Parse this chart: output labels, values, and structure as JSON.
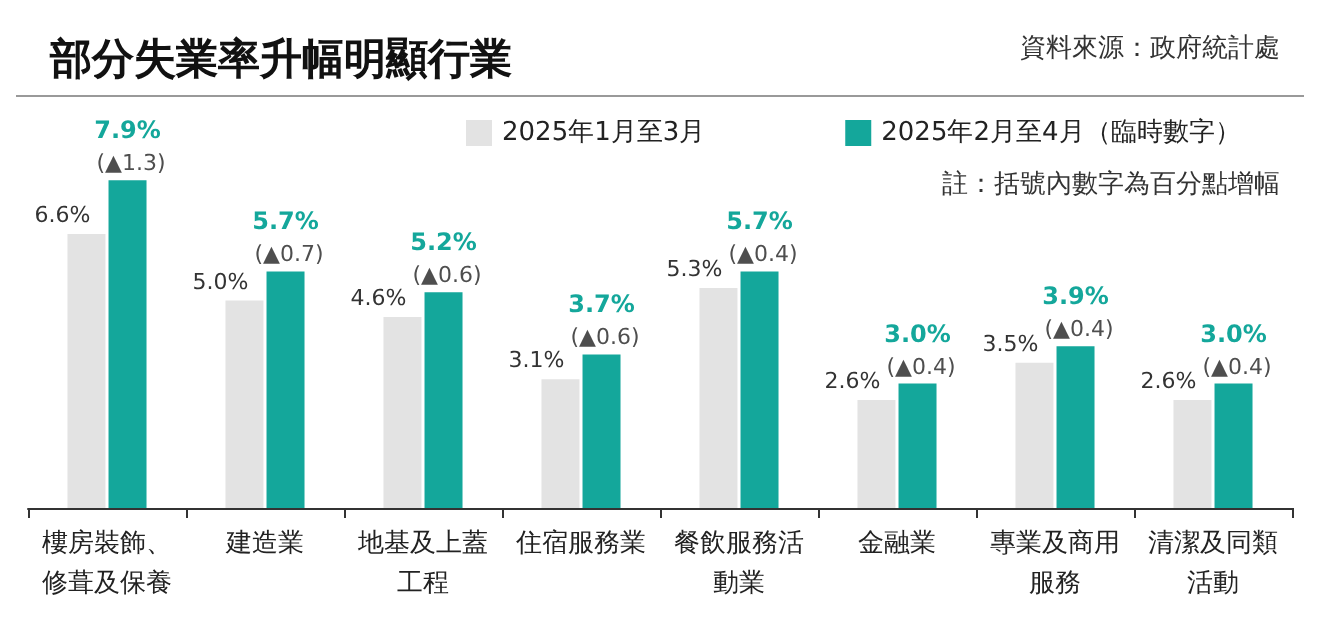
{
  "chart_data": {
    "type": "bar",
    "title": "部分失業率升幅明顯行業",
    "categories": [
      "樓房裝飾、修葺及保養",
      "建造業",
      "地基及上蓋工程",
      "住宿服務業",
      "餐飲服務活動業",
      "金融業",
      "專業及商用服務",
      "清潔及同類活動"
    ],
    "series": [
      {
        "name": "2025年1月至3月",
        "color": "#e3e3e3",
        "values": [
          6.6,
          5.0,
          4.6,
          3.1,
          5.3,
          2.6,
          3.5,
          2.6
        ],
        "value_labels": [
          "6.6%",
          "5.0%",
          "4.6%",
          "3.1%",
          "5.3%",
          "2.6%",
          "3.5%",
          "2.6%"
        ]
      },
      {
        "name": "2025年2月至4月（臨時數字）",
        "color": "#14a79b",
        "values": [
          7.9,
          5.7,
          5.2,
          3.7,
          5.7,
          3.0,
          3.9,
          3.0
        ],
        "value_labels": [
          "7.9%",
          "5.7%",
          "5.2%",
          "3.7%",
          "5.7%",
          "3.0%",
          "3.9%",
          "3.0%"
        ]
      }
    ],
    "annotations": [
      "資料來源：政府統計處",
      "註：括號內數字為百分點增幅",
      {
        "text": "(▲1.3)",
        "x": "樓房裝飾、修葺及保養",
        "y": 7.9
      },
      {
        "text": "(▲0.7)",
        "x": "建造業",
        "y": 5.7
      },
      {
        "text": "(▲0.6)",
        "x": "地基及上蓋工程",
        "y": 5.2
      },
      {
        "text": "(▲0.6)",
        "x": "住宿服務業",
        "y": 3.7
      },
      {
        "text": "(▲0.4)",
        "x": "餐飲服務活動業",
        "y": 5.7
      },
      {
        "text": "(▲0.4)",
        "x": "金融業",
        "y": 3.0
      },
      {
        "text": "(▲0.4)",
        "x": "專業及商用服務",
        "y": 3.9
      },
      {
        "text": "(▲0.4)",
        "x": "清潔及同類活動",
        "y": 3.0
      }
    ],
    "legend": "top"
  }
}
